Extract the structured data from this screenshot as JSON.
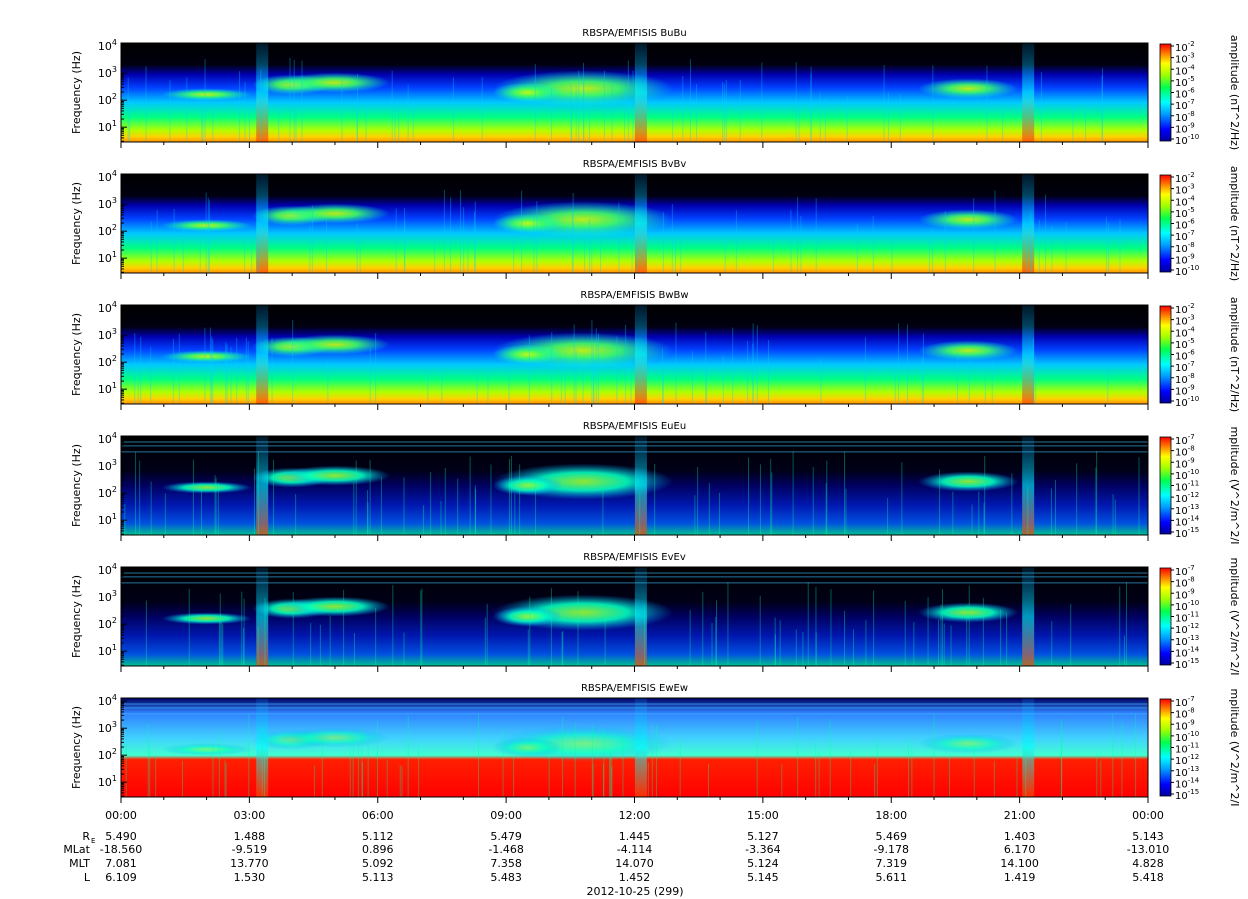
{
  "figure": {
    "date_label": "2012-10-25 (299)",
    "time_ticks": [
      "00:00",
      "03:00",
      "06:00",
      "09:00",
      "12:00",
      "15:00",
      "18:00",
      "21:00",
      "00:00"
    ],
    "ephemeris": {
      "labels": [
        "R_E",
        "MLat",
        "MLT",
        "L"
      ],
      "rows": [
        [
          "5.490",
          "1.488",
          "5.112",
          "5.479",
          "1.445",
          "5.127",
          "5.469",
          "1.403",
          "5.143"
        ],
        [
          "-18.560",
          "-9.519",
          "0.896",
          "-1.468",
          "-4.114",
          "-3.364",
          "-9.178",
          "6.170",
          "-13.010"
        ],
        [
          "7.081",
          "13.770",
          "5.092",
          "7.358",
          "14.070",
          "5.124",
          "7.319",
          "14.100",
          "4.828"
        ],
        [
          "6.109",
          "1.530",
          "5.113",
          "5.483",
          "1.452",
          "5.145",
          "5.611",
          "1.419",
          "5.418"
        ]
      ]
    }
  },
  "chart_data": [
    {
      "type": "heatmap",
      "title": "RBSPA/EMFISIS  BuBu",
      "ylabel": "Frequency (Hz)",
      "yscale": "log",
      "yticks": [
        "10^1",
        "10^2",
        "10^3",
        "10^4"
      ],
      "x_range": [
        "00:00",
        "24:00"
      ],
      "colorbar": {
        "label": "amplitude (nT^2/Hz)",
        "ticks": [
          "10^-2",
          "10^-3",
          "10^-4",
          "10^-5",
          "10^-6",
          "10^-7",
          "10^-8",
          "10^-9",
          "10^-10"
        ]
      }
    },
    {
      "type": "heatmap",
      "title": "RBSPA/EMFISIS  BvBv",
      "ylabel": "Frequency (Hz)",
      "yscale": "log",
      "yticks": [
        "10^1",
        "10^2",
        "10^3",
        "10^4"
      ],
      "x_range": [
        "00:00",
        "24:00"
      ],
      "colorbar": {
        "label": "amplitude (nT^2/Hz)",
        "ticks": [
          "10^-2",
          "10^-3",
          "10^-4",
          "10^-5",
          "10^-6",
          "10^-7",
          "10^-8",
          "10^-9",
          "10^-10"
        ]
      }
    },
    {
      "type": "heatmap",
      "title": "RBSPA/EMFISIS  BwBw",
      "ylabel": "Frequency (Hz)",
      "yscale": "log",
      "yticks": [
        "10^1",
        "10^2",
        "10^3",
        "10^4"
      ],
      "x_range": [
        "00:00",
        "24:00"
      ],
      "colorbar": {
        "label": "amplitude (nT^2/Hz)",
        "ticks": [
          "10^-2",
          "10^-3",
          "10^-4",
          "10^-5",
          "10^-6",
          "10^-7",
          "10^-8",
          "10^-9",
          "10^-10"
        ]
      }
    },
    {
      "type": "heatmap",
      "title": "RBSPA/EMFISIS  EuEu",
      "ylabel": "Frequency (Hz)",
      "yscale": "log",
      "yticks": [
        "10^1",
        "10^2",
        "10^3",
        "10^4"
      ],
      "x_range": [
        "00:00",
        "24:00"
      ],
      "colorbar": {
        "label": "mplitude (V^2/m^2/I",
        "ticks": [
          "10^-7",
          "10^-8",
          "10^-9",
          "10^-10",
          "10^-11",
          "10^-12",
          "10^-13",
          "10^-14",
          "10^-15"
        ]
      }
    },
    {
      "type": "heatmap",
      "title": "RBSPA/EMFISIS  EvEv",
      "ylabel": "Frequency (Hz)",
      "yscale": "log",
      "yticks": [
        "10^1",
        "10^2",
        "10^3",
        "10^4"
      ],
      "x_range": [
        "00:00",
        "24:00"
      ],
      "colorbar": {
        "label": "mplitude (V^2/m^2/I",
        "ticks": [
          "10^-7",
          "10^-8",
          "10^-9",
          "10^-10",
          "10^-11",
          "10^-12",
          "10^-13",
          "10^-14",
          "10^-15"
        ]
      }
    },
    {
      "type": "heatmap",
      "title": "RBSPA/EMFISIS  EwEw",
      "ylabel": "Frequency (Hz)",
      "yscale": "log",
      "yticks": [
        "10^1",
        "10^2",
        "10^3",
        "10^4"
      ],
      "x_range": [
        "00:00",
        "24:00"
      ],
      "colorbar": {
        "label": "mplitude (V^2/m^2/I",
        "ticks": [
          "10^-7",
          "10^-8",
          "10^-9",
          "10^-10",
          "10^-11",
          "10^-12",
          "10^-13",
          "10^-14",
          "10^-15"
        ]
      }
    }
  ]
}
